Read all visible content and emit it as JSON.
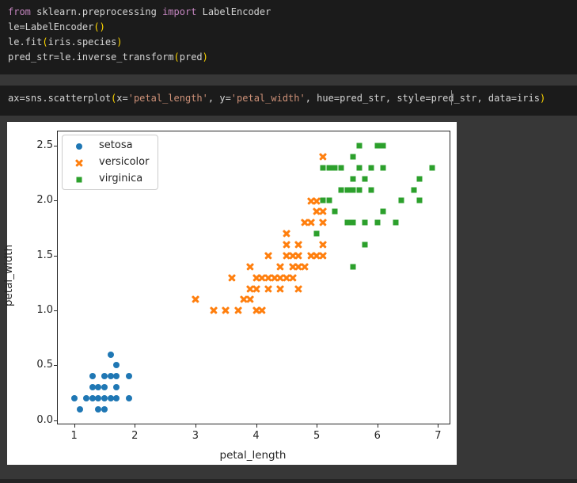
{
  "editor": {
    "background": "#1b1b1b",
    "page_background": "#373737",
    "syntax_colors": {
      "keyword": "#c586c0",
      "plain": "#d4d4d4",
      "paren": "#ffd700",
      "string": "#ce9178"
    },
    "cells": [
      {
        "id": "code-cell-1",
        "lines": [
          [
            [
              "keyword",
              "from "
            ],
            [
              "plain",
              "sklearn.preprocessing "
            ],
            [
              "keyword",
              "import "
            ],
            [
              "plain",
              "LabelEncoder"
            ]
          ],
          [
            [
              "plain",
              "le=LabelEncoder"
            ],
            [
              "paren",
              "()"
            ]
          ],
          [
            [
              "plain",
              "le.fit"
            ],
            [
              "paren",
              "("
            ],
            [
              "plain",
              "iris.species"
            ],
            [
              "paren",
              ")"
            ]
          ],
          [
            [
              "plain",
              "pred_str=le.inverse_transform"
            ],
            [
              "paren",
              "("
            ],
            [
              "plain",
              "pred"
            ],
            [
              "paren",
              ")"
            ]
          ]
        ]
      },
      {
        "id": "code-cell-2",
        "lines": [
          [
            [
              "plain",
              "ax=sns.scatterplot"
            ],
            [
              "paren",
              "("
            ],
            [
              "plain",
              "x="
            ],
            [
              "string",
              "'petal_length'"
            ],
            [
              "plain",
              ", y="
            ],
            [
              "string",
              "'petal_width'"
            ],
            [
              "plain",
              ", hue=pred_str, style=pred_str, data=iris"
            ],
            [
              "paren",
              ")"
            ]
          ]
        ],
        "has_caret": true
      }
    ]
  },
  "chart_data": {
    "type": "scatter",
    "title": "",
    "xlabel": "petal_length",
    "ylabel": "petal_width",
    "xlim": [
      0.73,
      7.19
    ],
    "ylim": [
      -0.03,
      2.63
    ],
    "xticks": [
      "1",
      "2",
      "3",
      "4",
      "5",
      "6",
      "7"
    ],
    "yticks": [
      "0.0",
      "0.5",
      "1.0",
      "1.5",
      "2.0",
      "2.5"
    ],
    "grid": false,
    "legend_position": "upper left",
    "series": [
      {
        "name": "setosa",
        "marker": "circle",
        "color": "#1f77b4",
        "points": [
          [
            1.0,
            0.2
          ],
          [
            1.1,
            0.1
          ],
          [
            1.2,
            0.2
          ],
          [
            1.3,
            0.2
          ],
          [
            1.3,
            0.3
          ],
          [
            1.3,
            0.4
          ],
          [
            1.4,
            0.1
          ],
          [
            1.4,
            0.2
          ],
          [
            1.4,
            0.3
          ],
          [
            1.5,
            0.1
          ],
          [
            1.5,
            0.2
          ],
          [
            1.5,
            0.3
          ],
          [
            1.5,
            0.4
          ],
          [
            1.6,
            0.2
          ],
          [
            1.6,
            0.4
          ],
          [
            1.6,
            0.6
          ],
          [
            1.7,
            0.2
          ],
          [
            1.7,
            0.3
          ],
          [
            1.7,
            0.4
          ],
          [
            1.7,
            0.5
          ],
          [
            1.9,
            0.2
          ],
          [
            1.9,
            0.4
          ]
        ]
      },
      {
        "name": "versicolor",
        "marker": "x",
        "color": "#ff7f0e",
        "points": [
          [
            3.0,
            1.1
          ],
          [
            3.3,
            1.0
          ],
          [
            3.5,
            1.0
          ],
          [
            3.6,
            1.3
          ],
          [
            3.7,
            1.0
          ],
          [
            3.8,
            1.1
          ],
          [
            3.9,
            1.1
          ],
          [
            3.9,
            1.2
          ],
          [
            3.9,
            1.4
          ],
          [
            4.0,
            1.0
          ],
          [
            4.0,
            1.2
          ],
          [
            4.0,
            1.3
          ],
          [
            4.1,
            1.0
          ],
          [
            4.1,
            1.3
          ],
          [
            4.2,
            1.2
          ],
          [
            4.2,
            1.3
          ],
          [
            4.2,
            1.5
          ],
          [
            4.3,
            1.3
          ],
          [
            4.4,
            1.2
          ],
          [
            4.4,
            1.3
          ],
          [
            4.4,
            1.4
          ],
          [
            4.5,
            1.3
          ],
          [
            4.5,
            1.5
          ],
          [
            4.5,
            1.6
          ],
          [
            4.5,
            1.7
          ],
          [
            4.6,
            1.3
          ],
          [
            4.6,
            1.4
          ],
          [
            4.6,
            1.5
          ],
          [
            4.7,
            1.2
          ],
          [
            4.7,
            1.4
          ],
          [
            4.7,
            1.5
          ],
          [
            4.7,
            1.6
          ],
          [
            4.8,
            1.4
          ],
          [
            4.8,
            1.8
          ],
          [
            4.9,
            1.5
          ],
          [
            4.9,
            1.8
          ],
          [
            4.9,
            2.0
          ],
          [
            5.0,
            1.5
          ],
          [
            5.0,
            1.9
          ],
          [
            5.0,
            2.0
          ],
          [
            5.1,
            1.5
          ],
          [
            5.1,
            1.6
          ],
          [
            5.1,
            1.8
          ],
          [
            5.1,
            1.9
          ],
          [
            5.1,
            2.4
          ]
        ]
      },
      {
        "name": "virginica",
        "marker": "square",
        "color": "#2ca02c",
        "points": [
          [
            5.0,
            1.7
          ],
          [
            5.1,
            2.0
          ],
          [
            5.1,
            2.3
          ],
          [
            5.2,
            2.0
          ],
          [
            5.2,
            2.3
          ],
          [
            5.3,
            1.9
          ],
          [
            5.3,
            2.3
          ],
          [
            5.4,
            2.1
          ],
          [
            5.4,
            2.3
          ],
          [
            5.5,
            1.8
          ],
          [
            5.5,
            2.1
          ],
          [
            5.6,
            1.4
          ],
          [
            5.6,
            1.8
          ],
          [
            5.6,
            2.1
          ],
          [
            5.6,
            2.2
          ],
          [
            5.6,
            2.4
          ],
          [
            5.7,
            2.1
          ],
          [
            5.7,
            2.3
          ],
          [
            5.7,
            2.5
          ],
          [
            5.8,
            1.6
          ],
          [
            5.8,
            1.8
          ],
          [
            5.8,
            2.2
          ],
          [
            5.9,
            2.1
          ],
          [
            5.9,
            2.3
          ],
          [
            6.0,
            1.8
          ],
          [
            6.0,
            2.5
          ],
          [
            6.1,
            1.9
          ],
          [
            6.1,
            2.3
          ],
          [
            6.1,
            2.5
          ],
          [
            6.3,
            1.8
          ],
          [
            6.4,
            2.0
          ],
          [
            6.6,
            2.1
          ],
          [
            6.7,
            2.0
          ],
          [
            6.7,
            2.2
          ],
          [
            6.9,
            2.3
          ]
        ]
      }
    ]
  }
}
